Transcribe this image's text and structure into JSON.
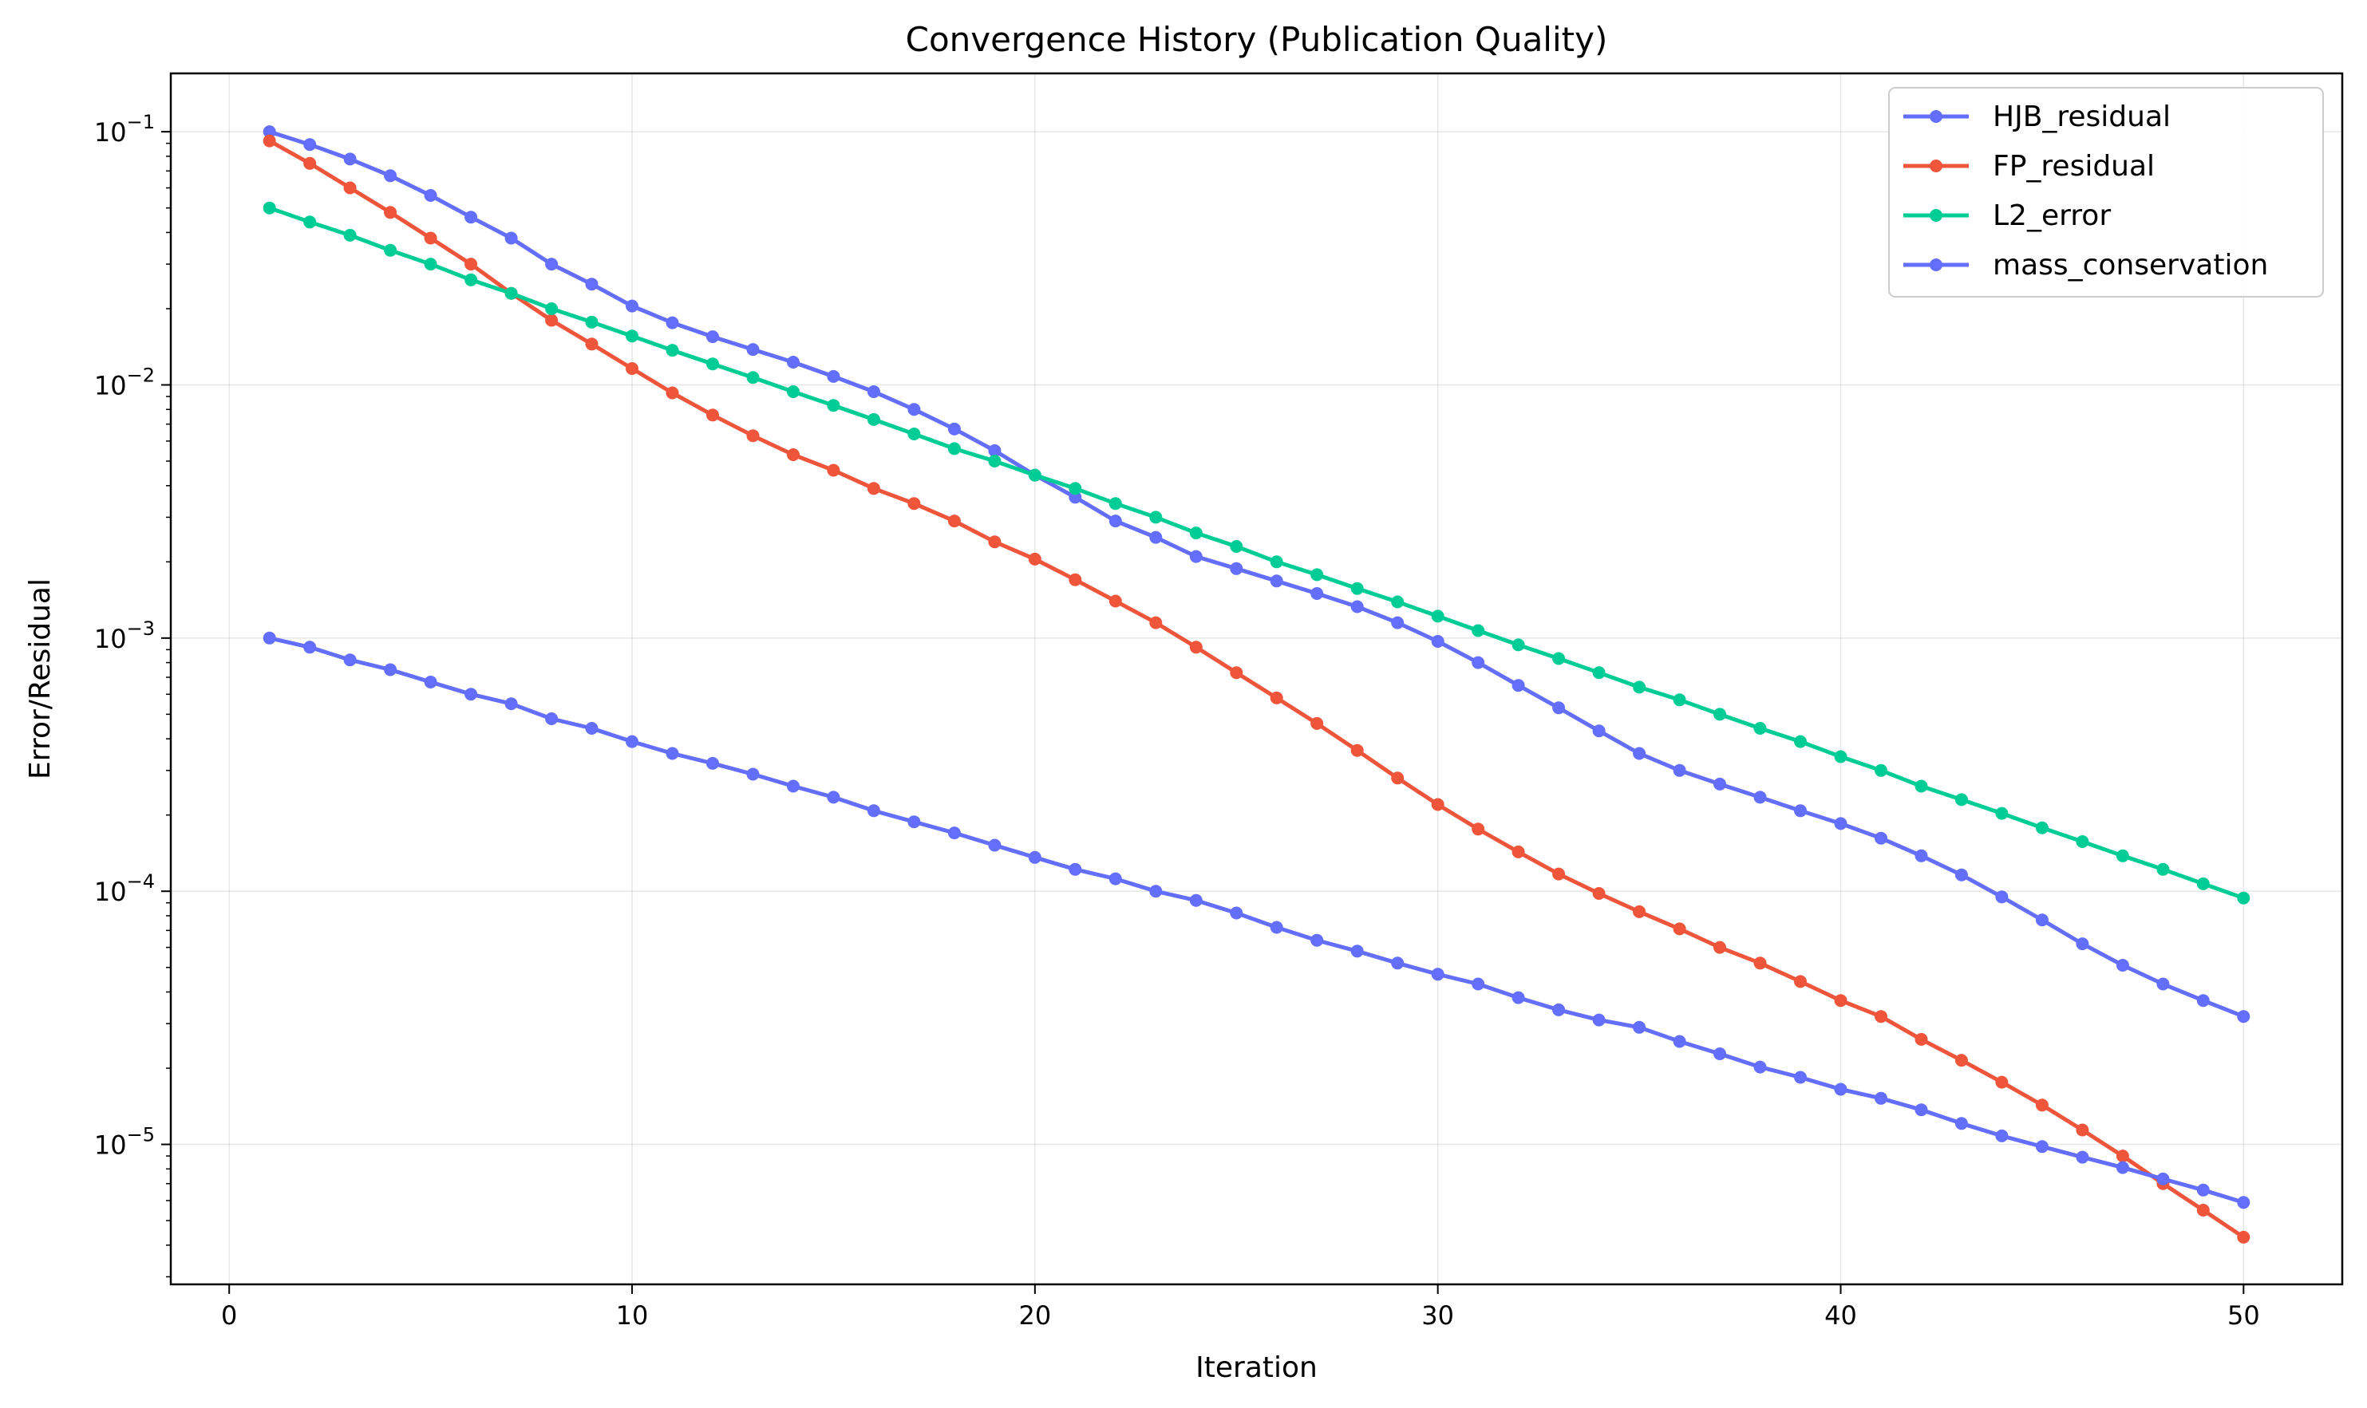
{
  "chart_data": {
    "type": "line",
    "title": "Convergence History (Publication Quality)",
    "xlabel": "Iteration",
    "ylabel": "Error/Residual",
    "xlim": [
      -1.45,
      52.45
    ],
    "ylim": [
      2.8e-06,
      0.17
    ],
    "yscale": "log",
    "grid": true,
    "legend_position": "top-right",
    "x_ticks": [
      0,
      10,
      20,
      30,
      40,
      50
    ],
    "y_ticks": [
      {
        "value": 0.1,
        "base": "10",
        "exp": "−1"
      },
      {
        "value": 0.01,
        "base": "10",
        "exp": "−2"
      },
      {
        "value": 0.001,
        "base": "10",
        "exp": "−3"
      },
      {
        "value": 0.0001,
        "base": "10",
        "exp": "−4"
      },
      {
        "value": 1e-05,
        "base": "10",
        "exp": "−5"
      }
    ],
    "x": [
      1,
      2,
      3,
      4,
      5,
      6,
      7,
      8,
      9,
      10,
      11,
      12,
      13,
      14,
      15,
      16,
      17,
      18,
      19,
      20,
      21,
      22,
      23,
      24,
      25,
      26,
      27,
      28,
      29,
      30,
      31,
      32,
      33,
      34,
      35,
      36,
      37,
      38,
      39,
      40,
      41,
      42,
      43,
      44,
      45,
      46,
      47,
      48,
      49,
      50
    ],
    "series": [
      {
        "name": "HJB_residual",
        "color": "#636efa",
        "values": [
          0.1,
          0.089,
          0.078,
          0.067,
          0.056,
          0.046,
          0.038,
          0.03,
          0.025,
          0.0205,
          0.0176,
          0.0155,
          0.0138,
          0.0123,
          0.0108,
          0.0094,
          0.008,
          0.0067,
          0.0055,
          0.0044,
          0.0036,
          0.0029,
          0.0025,
          0.0021,
          0.00188,
          0.00168,
          0.0015,
          0.00133,
          0.00115,
          0.00097,
          0.0008,
          0.00065,
          0.00053,
          0.00043,
          0.00035,
          0.0003,
          0.000265,
          0.000235,
          0.000208,
          0.000185,
          0.000162,
          0.000138,
          0.000116,
          9.5e-05,
          7.7e-05,
          6.2e-05,
          5.1e-05,
          4.3e-05,
          3.7e-05,
          3.2e-05
        ]
      },
      {
        "name": "FP_residual",
        "color": "#ef553b",
        "values": [
          0.092,
          0.075,
          0.06,
          0.048,
          0.038,
          0.03,
          0.023,
          0.018,
          0.0145,
          0.0116,
          0.0093,
          0.0076,
          0.0063,
          0.0053,
          0.0046,
          0.0039,
          0.0034,
          0.0029,
          0.0024,
          0.00205,
          0.0017,
          0.0014,
          0.00115,
          0.00092,
          0.00073,
          0.00058,
          0.00046,
          0.00036,
          0.00028,
          0.00022,
          0.000176,
          0.000143,
          0.000117,
          9.8e-05,
          8.3e-05,
          7.1e-05,
          6e-05,
          5.2e-05,
          4.4e-05,
          3.7e-05,
          3.2e-05,
          2.6e-05,
          2.15e-05,
          1.76e-05,
          1.43e-05,
          1.14e-05,
          9e-06,
          7e-06,
          5.5e-06,
          4.3e-06
        ]
      },
      {
        "name": "L2_error",
        "color": "#00cc96",
        "values": [
          0.05,
          0.044,
          0.039,
          0.034,
          0.03,
          0.026,
          0.023,
          0.02,
          0.0177,
          0.0156,
          0.0137,
          0.0121,
          0.0107,
          0.0094,
          0.0083,
          0.0073,
          0.0064,
          0.0056,
          0.005,
          0.0044,
          0.0039,
          0.0034,
          0.003,
          0.0026,
          0.0023,
          0.002,
          0.00178,
          0.00157,
          0.00139,
          0.00122,
          0.00107,
          0.00094,
          0.00083,
          0.00073,
          0.00064,
          0.00057,
          0.0005,
          0.00044,
          0.00039,
          0.00034,
          0.0003,
          0.00026,
          0.00023,
          0.000203,
          0.000178,
          0.000157,
          0.000138,
          0.000122,
          0.000107,
          9.4e-05
        ]
      },
      {
        "name": "mass_conservation",
        "color": "#636efa",
        "values": [
          0.001,
          0.00092,
          0.00082,
          0.00075,
          0.00067,
          0.0006,
          0.00055,
          0.00048,
          0.00044,
          0.00039,
          0.00035,
          0.00032,
          0.00029,
          0.00026,
          0.000235,
          0.000208,
          0.000188,
          0.00017,
          0.000152,
          0.000136,
          0.000122,
          0.000112,
          0.0001,
          9.2e-05,
          8.2e-05,
          7.2e-05,
          6.4e-05,
          5.8e-05,
          5.2e-05,
          4.7e-05,
          4.3e-05,
          3.8e-05,
          3.4e-05,
          3.1e-05,
          2.9e-05,
          2.55e-05,
          2.28e-05,
          2.02e-05,
          1.84e-05,
          1.65e-05,
          1.52e-05,
          1.37e-05,
          1.21e-05,
          1.08e-05,
          9.8e-06,
          8.9e-06,
          8.1e-06,
          7.3e-06,
          6.6e-06,
          5.9e-06
        ]
      }
    ]
  }
}
